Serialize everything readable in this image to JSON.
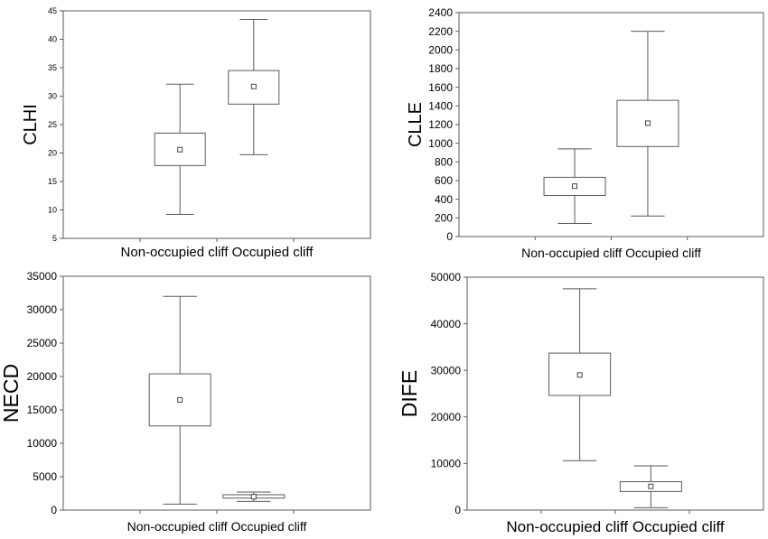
{
  "chart_data": [
    {
      "type": "boxplot",
      "ylabel": "CLHI",
      "ylim": [
        5,
        45
      ],
      "yticks": [
        5,
        10,
        15,
        20,
        25,
        30,
        35,
        40,
        45
      ],
      "categories": [
        "Non-occupied cliff",
        "Occupied cliff"
      ],
      "boxes": [
        {
          "min": 9.2,
          "q1": 17.8,
          "mean": 20.6,
          "q3": 23.5,
          "max": 32.1
        },
        {
          "min": 19.7,
          "q1": 28.6,
          "mean": 31.7,
          "q3": 34.5,
          "max": 43.5
        }
      ]
    },
    {
      "type": "boxplot",
      "ylabel": "CLLE",
      "ylim": [
        0,
        2400
      ],
      "yticks": [
        0,
        200,
        400,
        600,
        800,
        1000,
        1200,
        1400,
        1600,
        1800,
        2000,
        2200,
        2400
      ],
      "categories": [
        "Non-occupied cliff",
        "Occupied cliff"
      ],
      "boxes": [
        {
          "min": 140,
          "q1": 440,
          "mean": 540,
          "q3": 635,
          "max": 940
        },
        {
          "min": 220,
          "q1": 965,
          "mean": 1215,
          "q3": 1460,
          "max": 2200
        }
      ]
    },
    {
      "type": "boxplot",
      "ylabel": "NECD",
      "ylim": [
        0,
        35000
      ],
      "yticks": [
        0,
        5000,
        10000,
        15000,
        20000,
        25000,
        30000,
        35000
      ],
      "categories": [
        "Non-occupied cliff",
        "Occupied cliff"
      ],
      "boxes": [
        {
          "min": 900,
          "q1": 12600,
          "mean": 16500,
          "q3": 20400,
          "max": 32000
        },
        {
          "min": 1300,
          "q1": 1800,
          "mean": 2000,
          "q3": 2300,
          "max": 2700
        }
      ]
    },
    {
      "type": "boxplot",
      "ylabel": "DIFE",
      "ylim": [
        0,
        50000
      ],
      "yticks": [
        0,
        10000,
        20000,
        30000,
        40000,
        50000
      ],
      "categories": [
        "Non-occupied cliff",
        "Occupied cliff"
      ],
      "boxes": [
        {
          "min": 10600,
          "q1": 24600,
          "mean": 29000,
          "q3": 33700,
          "max": 47500
        },
        {
          "min": 500,
          "q1": 4000,
          "mean": 5100,
          "q3": 6100,
          "max": 9500
        }
      ]
    }
  ]
}
